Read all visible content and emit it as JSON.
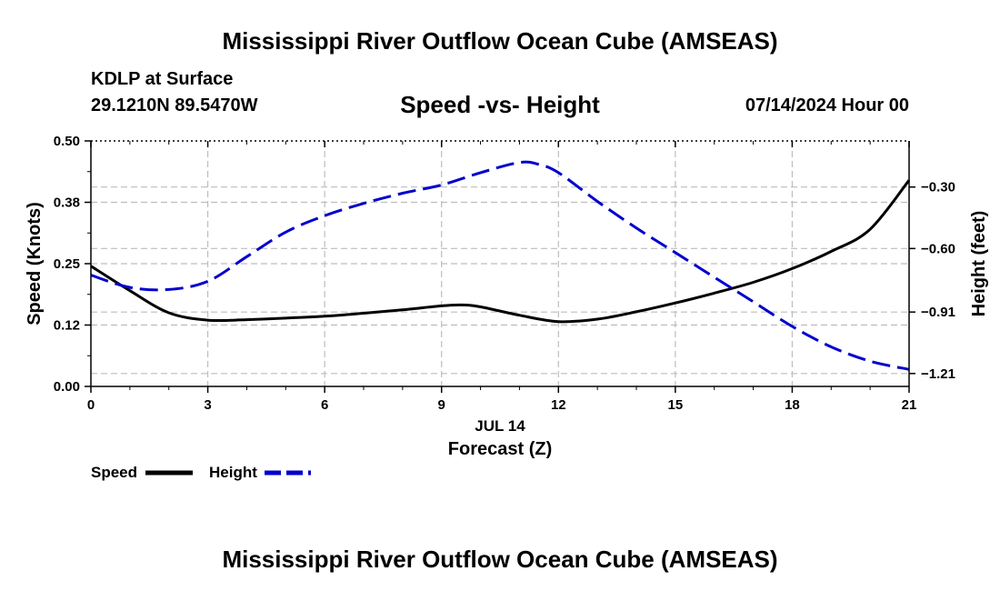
{
  "header": {
    "title": "Mississippi River Outflow Ocean Cube (AMSEAS)",
    "location": "KDLP at Surface",
    "coords": "29.1210N  89.5470W",
    "subtitle": "Speed -vs- Height",
    "datetime": "07/14/2024 Hour 00",
    "footer_title": "Mississippi River Outflow Ocean Cube (AMSEAS)"
  },
  "chart_data": {
    "type": "line",
    "title": "Speed -vs- Height",
    "xlabel": "Forecast (Z)",
    "xdate_label": "JUL 14",
    "xlim": [
      0,
      21
    ],
    "x_ticks": [
      0,
      3,
      6,
      9,
      12,
      15,
      18,
      21
    ],
    "ylabel_left": "Speed (Knots)",
    "ylim_left": [
      0,
      0.5
    ],
    "y_ticks_left": [
      0.0,
      0.125,
      0.25,
      0.375,
      0.5
    ],
    "y_tick_labels_left": [
      "0.00",
      "0.12",
      "0.25",
      "0.38",
      "0.50"
    ],
    "ylabel_right": "Height (feet)",
    "ylim_right": [
      -1.273,
      -0.075
    ],
    "y_ticks_right": [
      -0.3,
      -0.6,
      -0.91,
      -1.21
    ],
    "y_tick_labels_right": [
      "−0.30",
      "−0.60",
      "−0.91",
      "−1.21"
    ],
    "grid": true,
    "legend": "bottom-left",
    "series": [
      {
        "name": "Speed",
        "axis": "left",
        "color": "#000000",
        "dash": "solid",
        "x": [
          0,
          1,
          2,
          3,
          4,
          5,
          6,
          7,
          8,
          9,
          9.5,
          10,
          11,
          12,
          13,
          14,
          15,
          16,
          17,
          18,
          19,
          20,
          21
        ],
        "values": [
          0.245,
          0.195,
          0.15,
          0.135,
          0.136,
          0.139,
          0.143,
          0.149,
          0.156,
          0.164,
          0.166,
          0.162,
          0.145,
          0.132,
          0.137,
          0.152,
          0.17,
          0.19,
          0.212,
          0.24,
          0.275,
          0.32,
          0.42
        ]
      },
      {
        "name": "Height",
        "axis": "right",
        "color": "#0000cc",
        "dash": "dashed",
        "x": [
          0,
          1,
          2,
          3,
          4,
          5,
          6,
          7,
          8,
          9,
          10,
          11,
          11.5,
          12,
          13,
          14,
          15,
          16,
          17,
          18,
          19,
          20,
          21
        ],
        "values": [
          -0.73,
          -0.79,
          -0.8,
          -0.76,
          -0.64,
          -0.52,
          -0.44,
          -0.38,
          -0.33,
          -0.29,
          -0.23,
          -0.18,
          -0.19,
          -0.23,
          -0.37,
          -0.5,
          -0.62,
          -0.74,
          -0.86,
          -0.98,
          -1.08,
          -1.15,
          -1.19
        ]
      }
    ]
  }
}
